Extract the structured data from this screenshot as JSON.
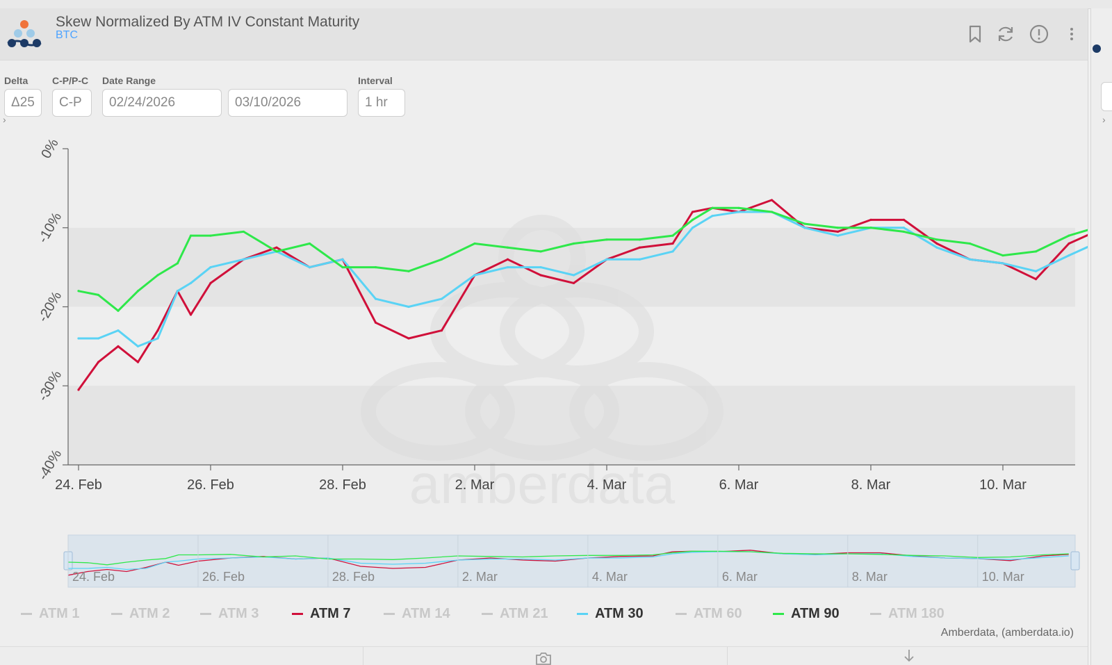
{
  "widget": {
    "title": "Skew Normalized By ATM IV Constant Maturity",
    "asset": "BTC"
  },
  "controls": {
    "delta_label": "Delta",
    "delta_value": "Δ25",
    "cp_label": "C-P/P-C",
    "cp_value": "C-P",
    "date_range_label": "Date Range",
    "date_from": "02/24/2026",
    "date_to": "03/10/2026",
    "interval_label": "Interval",
    "interval_value": "1 hr"
  },
  "icons": [
    "logo-icon",
    "bookmark-icon",
    "refresh-icon",
    "alert-icon",
    "more-icon",
    "camera-icon",
    "download-icon"
  ],
  "watermark": "amberdata",
  "credits": "Amberdata, (amberdata.io)",
  "colors": {
    "atm7": "#d0103a",
    "atm30": "#5ad3f5",
    "atm90": "#2ee84a",
    "inactive": "#c8c8c8",
    "subtitle": "#4da3ff"
  },
  "chart_data": {
    "type": "line",
    "title": "Skew Normalized By ATM IV Constant Maturity",
    "xlabel": "",
    "ylabel": "",
    "ylim": [
      -40,
      0
    ],
    "y_ticks": [
      0,
      -10,
      -20,
      -30,
      -40
    ],
    "y_tick_labels": [
      "0%",
      "-10%",
      "-20%",
      "-30%",
      "-40%"
    ],
    "x_start_day": 0,
    "x_end_day": 15.5,
    "x_ticks": [
      0,
      2,
      4,
      6,
      8,
      10,
      12,
      14
    ],
    "x_tick_labels": [
      "24. Feb",
      "26. Feb",
      "28. Feb",
      "2. Mar",
      "4. Mar",
      "6. Mar",
      "8. Mar",
      "10. Mar"
    ],
    "x_unit": "days since 24. Feb 2026",
    "legend": [
      "ATM 1",
      "ATM 2",
      "ATM 3",
      "ATM 7",
      "ATM 14",
      "ATM 21",
      "ATM 30",
      "ATM 60",
      "ATM 90",
      "ATM 180"
    ],
    "legend_active": [
      false,
      false,
      false,
      true,
      false,
      false,
      true,
      false,
      true,
      false
    ],
    "series": [
      {
        "name": "ATM 7",
        "color": "#d0103a",
        "x": [
          0,
          0.3,
          0.6,
          0.9,
          1.2,
          1.5,
          1.7,
          2.0,
          2.5,
          3.0,
          3.5,
          4.0,
          4.5,
          5.0,
          5.5,
          6.0,
          6.5,
          7.0,
          7.5,
          8.0,
          8.5,
          9.0,
          9.3,
          9.6,
          10.0,
          10.5,
          11.0,
          11.5,
          12.0,
          12.5,
          13.0,
          13.5,
          14.0,
          14.5,
          15.0,
          15.4
        ],
        "y": [
          -30.5,
          -27,
          -25,
          -27,
          -23,
          -18,
          -21,
          -17,
          -14,
          -12.5,
          -15,
          -14,
          -22,
          -24,
          -23,
          -16,
          -14,
          -16,
          -17,
          -14,
          -12.5,
          -12,
          -8,
          -7.5,
          -8,
          -6.5,
          -10,
          -10.5,
          -9,
          -9,
          -12,
          -14,
          -14.5,
          -16.5,
          -12,
          -10.5
        ]
      },
      {
        "name": "ATM 30",
        "color": "#5ad3f5",
        "x": [
          0,
          0.3,
          0.6,
          0.9,
          1.2,
          1.5,
          1.7,
          2.0,
          2.5,
          3.0,
          3.5,
          4.0,
          4.5,
          5.0,
          5.5,
          6.0,
          6.5,
          7.0,
          7.5,
          8.0,
          8.5,
          9.0,
          9.3,
          9.6,
          10.0,
          10.5,
          11.0,
          11.5,
          12.0,
          12.5,
          13.0,
          13.5,
          14.0,
          14.5,
          15.0,
          15.4
        ],
        "y": [
          -24,
          -24,
          -23,
          -25,
          -24,
          -18,
          -17,
          -15,
          -14,
          -13,
          -15,
          -14,
          -19,
          -20,
          -19,
          -16,
          -15,
          -15,
          -16,
          -14,
          -14,
          -13,
          -10,
          -8.5,
          -8,
          -8,
          -10,
          -11,
          -10,
          -10,
          -12.5,
          -14,
          -14.5,
          -15.5,
          -13.5,
          -12
        ]
      },
      {
        "name": "ATM 90",
        "color": "#2ee84a",
        "x": [
          0,
          0.3,
          0.6,
          0.9,
          1.2,
          1.5,
          1.7,
          2.0,
          2.5,
          3.0,
          3.5,
          4.0,
          4.5,
          5.0,
          5.5,
          6.0,
          6.5,
          7.0,
          7.5,
          8.0,
          8.5,
          9.0,
          9.3,
          9.6,
          10.0,
          10.5,
          11.0,
          11.5,
          12.0,
          12.5,
          13.0,
          13.5,
          14.0,
          14.5,
          15.0,
          15.4
        ],
        "y": [
          -18,
          -18.5,
          -20.5,
          -18,
          -16,
          -14.5,
          -11,
          -11,
          -10.5,
          -13,
          -12,
          -15,
          -15,
          -15.5,
          -14,
          -12,
          -12.5,
          -13,
          -12,
          -11.5,
          -11.5,
          -11,
          -9,
          -7.5,
          -7.5,
          -8,
          -9.5,
          -10,
          -10,
          -10.5,
          -11.5,
          -12,
          -13.5,
          -13,
          -11,
          -10
        ]
      }
    ],
    "navigator": {
      "x_tick_labels": [
        "24. Feb",
        "26. Feb",
        "28. Feb",
        "2. Mar",
        "4. Mar",
        "6. Mar",
        "8. Mar",
        "10. Mar"
      ]
    }
  }
}
